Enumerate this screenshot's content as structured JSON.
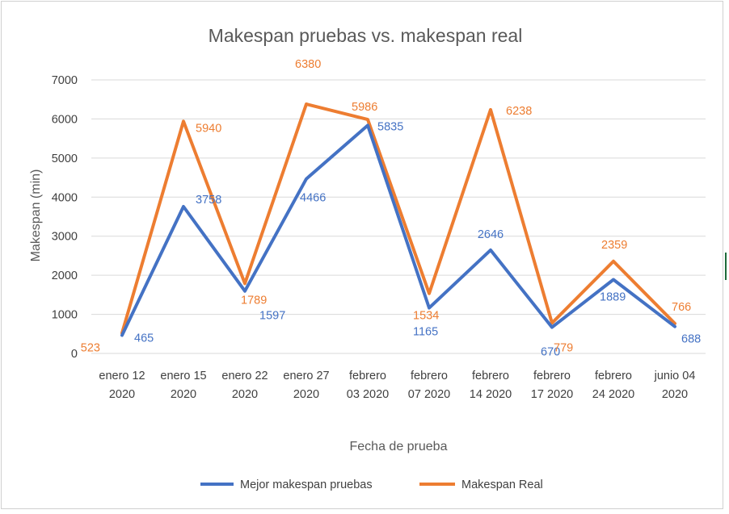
{
  "chart_data": {
    "type": "line",
    "title": "Makespan pruebas vs. makespan real",
    "xlabel": "Fecha de prueba",
    "ylabel": "Makespan (min)",
    "ylim": [
      0,
      7000
    ],
    "yticks": [
      0,
      1000,
      2000,
      3000,
      4000,
      5000,
      6000,
      7000
    ],
    "grid": true,
    "legend_position": "bottom",
    "categories": [
      [
        "enero 12",
        "2020"
      ],
      [
        "enero 15",
        "2020"
      ],
      [
        "enero 22",
        "2020"
      ],
      [
        "enero 27",
        "2020"
      ],
      [
        "febrero",
        "03 2020"
      ],
      [
        "febrero",
        "07 2020"
      ],
      [
        "febrero",
        "14 2020"
      ],
      [
        "febrero",
        "17 2020"
      ],
      [
        "febrero",
        "24 2020"
      ],
      [
        "junio 04",
        "2020"
      ]
    ],
    "series": [
      {
        "name": "Mejor makespan pruebas",
        "color": "#4472C4",
        "values": [
          465,
          3758,
          1597,
          4466,
          5835,
          1165,
          2646,
          670,
          1889,
          688
        ]
      },
      {
        "name": "Makespan Real",
        "color": "#ED7D31",
        "values": [
          523,
          5940,
          1789,
          6380,
          5986,
          1534,
          6238,
          779,
          2359,
          766
        ]
      }
    ]
  }
}
